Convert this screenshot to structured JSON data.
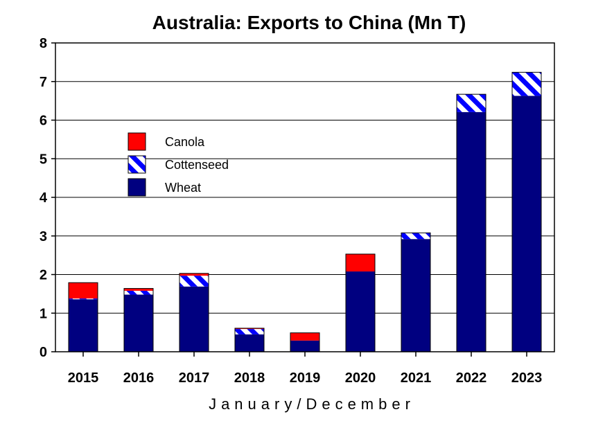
{
  "chart_data": {
    "type": "bar",
    "stacked": true,
    "title": "Australia: Exports to China (Mn T)",
    "xlabel": "January/December",
    "ylabel": "",
    "categories": [
      "2015",
      "2016",
      "2017",
      "2018",
      "2019",
      "2020",
      "2021",
      "2022",
      "2023"
    ],
    "ylim": [
      0,
      8
    ],
    "yticks": [
      "0",
      "1",
      "2",
      "3",
      "4",
      "5",
      "6",
      "7",
      "8"
    ],
    "grid": true,
    "legend_position": "upper-left",
    "series": [
      {
        "name": "Wheat",
        "color": "#000080",
        "pattern": "solid",
        "values": [
          1.36,
          1.48,
          1.69,
          0.45,
          0.29,
          2.08,
          2.92,
          6.21,
          6.63
        ]
      },
      {
        "name": "Cottenseed",
        "color": "#0000ff",
        "pattern": "hatch",
        "values": [
          0.02,
          0.1,
          0.28,
          0.14,
          0.0,
          0.0,
          0.16,
          0.46,
          0.61
        ]
      },
      {
        "name": "Canola",
        "color": "#ff0000",
        "pattern": "solid",
        "values": [
          0.41,
          0.06,
          0.06,
          0.02,
          0.2,
          0.45,
          0.0,
          0.0,
          0.0
        ]
      }
    ],
    "legend_order": [
      "Canola",
      "Cottenseed",
      "Wheat"
    ]
  }
}
